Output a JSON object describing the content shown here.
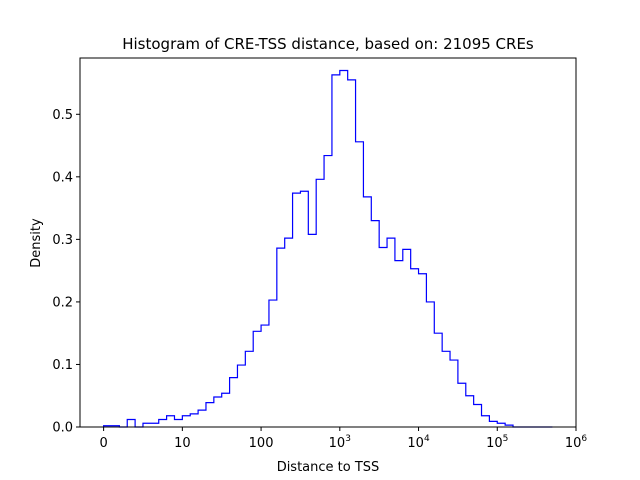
{
  "chart_data": {
    "type": "histogram",
    "title": "Histogram of CRE-TSS distance, based on: 21095 CREs",
    "xlabel": "Distance to TSS",
    "ylabel": "Density",
    "x_scale": "symlog (log10(distance + 1))",
    "xlim": [
      -0.3,
      6
    ],
    "ylim": [
      0,
      0.59
    ],
    "grid": false,
    "legend": "none",
    "color": "#0000ff",
    "x_ticks": [
      {
        "value": 0,
        "label": "0"
      },
      {
        "value": 1,
        "label": "10"
      },
      {
        "value": 2,
        "label": "100"
      },
      {
        "value": 3,
        "label": "10",
        "sup": "3"
      },
      {
        "value": 4,
        "label": "10",
        "sup": "4"
      },
      {
        "value": 5,
        "label": "10",
        "sup": "5"
      },
      {
        "value": 6,
        "label": "10",
        "sup": "6"
      }
    ],
    "y_ticks": [
      {
        "value": 0.0,
        "label": "0.0"
      },
      {
        "value": 0.1,
        "label": "0.1"
      },
      {
        "value": 0.2,
        "label": "0.2"
      },
      {
        "value": 0.3,
        "label": "0.3"
      },
      {
        "value": 0.4,
        "label": "0.4"
      },
      {
        "value": 0.5,
        "label": "0.5"
      },
      {
        "value": 0.6,
        "label": ""
      }
    ],
    "bin_edges_log10": [
      0,
      0.1,
      0.2,
      0.3,
      0.4,
      0.5,
      0.6,
      0.7,
      0.8,
      0.9,
      1.0,
      1.1,
      1.2,
      1.3,
      1.4,
      1.5,
      1.6,
      1.7,
      1.8,
      1.9,
      2.0,
      2.1,
      2.2,
      2.3,
      2.4,
      2.5,
      2.6,
      2.7,
      2.8,
      2.9,
      3.0,
      3.1,
      3.2,
      3.3,
      3.4,
      3.5,
      3.6,
      3.7,
      3.8,
      3.9,
      4.0,
      4.1,
      4.2,
      4.3,
      4.4,
      4.5,
      4.6,
      4.7,
      4.8,
      4.9,
      5.0,
      5.1,
      5.2,
      5.3,
      5.4,
      5.5,
      5.6,
      5.7
    ],
    "density": [
      0.002,
      0.002,
      0.0,
      0.012,
      0.0,
      0.006,
      0.006,
      0.012,
      0.018,
      0.012,
      0.018,
      0.021,
      0.027,
      0.039,
      0.048,
      0.054,
      0.079,
      0.099,
      0.121,
      0.153,
      0.163,
      0.203,
      0.286,
      0.302,
      0.374,
      0.377,
      0.308,
      0.396,
      0.434,
      0.563,
      0.57,
      0.555,
      0.456,
      0.368,
      0.33,
      0.287,
      0.302,
      0.266,
      0.284,
      0.253,
      0.245,
      0.2,
      0.15,
      0.121,
      0.107,
      0.07,
      0.05,
      0.036,
      0.018,
      0.009,
      0.006,
      0.003,
      0.0,
      0.0,
      0.0,
      0.0,
      0.0
    ]
  }
}
